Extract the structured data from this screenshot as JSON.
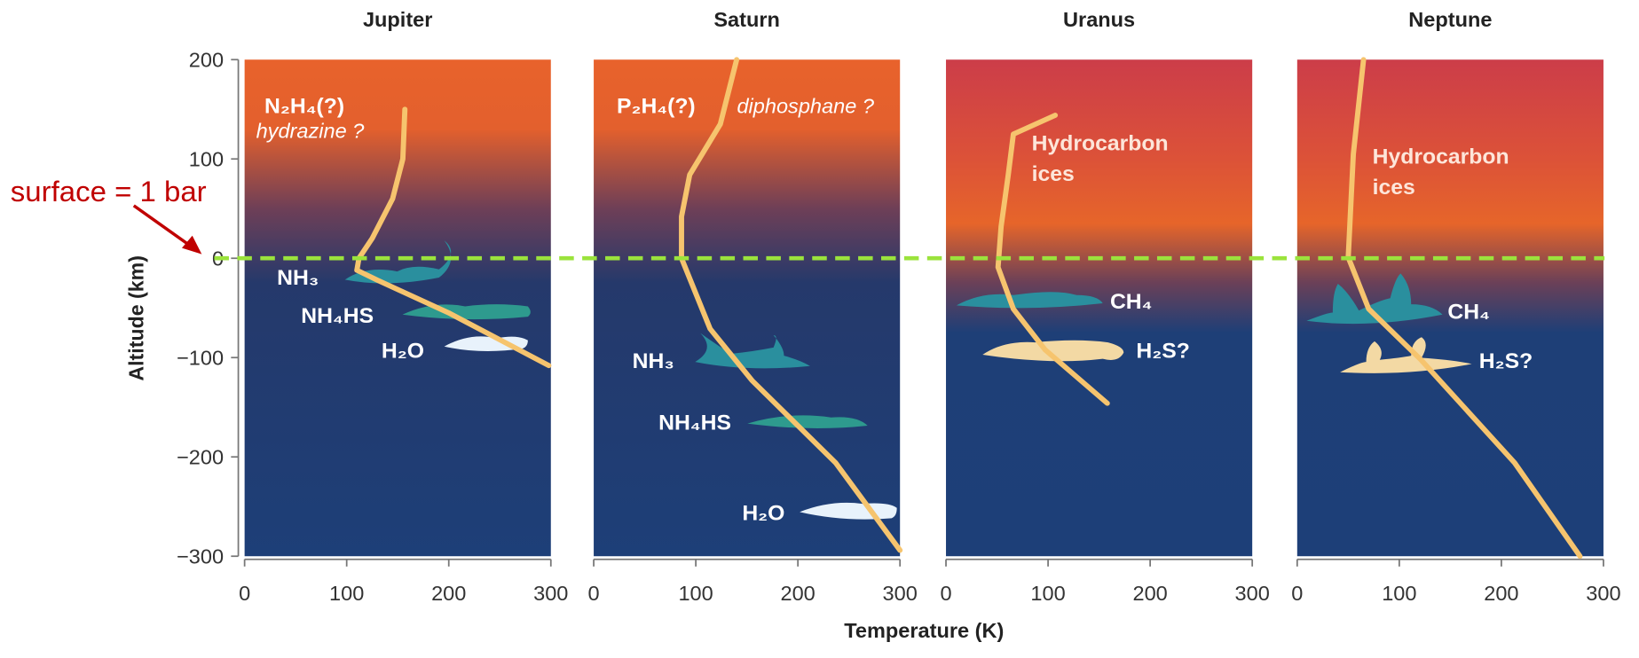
{
  "chart_data": [
    {
      "type": "line",
      "title": "Jupiter",
      "xlim": [
        0,
        300
      ],
      "ylim": [
        -300,
        200
      ],
      "xticks": [
        0,
        100,
        200,
        300
      ],
      "yticks": [
        200,
        100,
        0,
        {
          "value": -100,
          "label": "−100"
        },
        {
          "value": -200,
          "label": "−200"
        },
        {
          "value": -300,
          "label": "−300"
        }
      ],
      "series": [
        {
          "color": "#f6c46e",
          "x": [
            157,
            155,
            145,
            125,
            112,
            110,
            130,
            200,
            298
          ],
          "values": [
            150,
            100,
            60,
            20,
            0,
            -12,
            -22,
            -55,
            -108
          ]
        }
      ],
      "annotations": [
        "N₂H₄(?)",
        "hydrazine ?",
        "NH₃",
        "NH₄HS",
        "H₂O"
      ]
    },
    {
      "type": "line",
      "title": "Saturn",
      "xlim": [
        0,
        300
      ],
      "ylim": [
        -300,
        200
      ],
      "xticks": [
        0,
        100,
        200,
        300
      ],
      "series": [
        {
          "color": "#f6c46e",
          "x": [
            140,
            124,
            94,
            86,
            86,
            114,
            155,
            237,
            300
          ],
          "values": [
            200,
            135,
            84,
            42,
            0,
            -71,
            -123,
            -206,
            -294
          ]
        }
      ],
      "annotations": [
        "P₂H₄(?)",
        "diphosphane ?",
        "NH₃",
        "NH₄HS",
        "H₂O"
      ]
    },
    {
      "type": "line",
      "title": "Uranus",
      "xlim": [
        0,
        300
      ],
      "ylim": [
        -300,
        200
      ],
      "xticks": [
        0,
        100,
        200,
        300
      ],
      "series": [
        {
          "color": "#f6c46e",
          "x": [
            107,
            66,
            61,
            54,
            51,
            66,
            97,
            158
          ],
          "values": [
            144,
            125,
            84,
            32,
            -9,
            -51,
            -92,
            -146
          ]
        }
      ],
      "annotations": [
        "Hydrocarbon ices",
        "CH₄",
        "H₂S?"
      ]
    },
    {
      "type": "line",
      "title": "Neptune",
      "xlim": [
        0,
        300
      ],
      "ylim": [
        -300,
        200
      ],
      "xticks": [
        0,
        100,
        200,
        300
      ],
      "series": [
        {
          "color": "#f6c46e",
          "x": [
            65,
            55,
            50,
            70,
            121,
            213,
            277
          ],
          "values": [
            200,
            105,
            1,
            -51,
            -102,
            -206,
            -300
          ]
        }
      ],
      "annotations": [
        "Hydrocarbon ices",
        "CH₄",
        "H₂S?"
      ]
    }
  ],
  "xlabel": "Temperature (K)",
  "ylabel": "Altitude (km)",
  "surface_line": {
    "label": "surface = 1 bar",
    "value": 0,
    "color": "#9be33c"
  }
}
